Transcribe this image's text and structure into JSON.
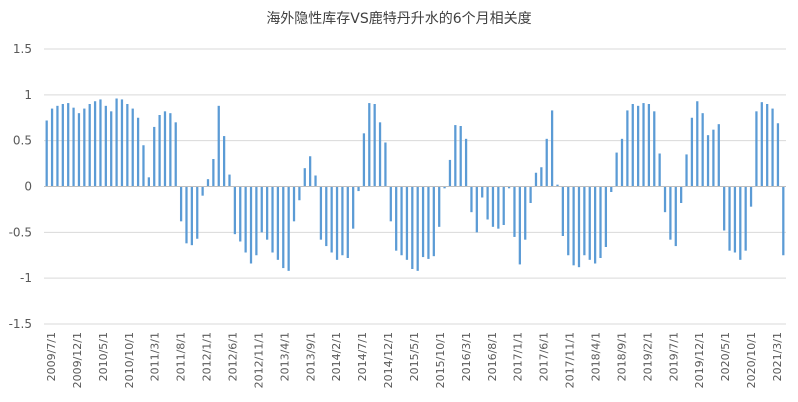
{
  "chart_data": {
    "type": "bar",
    "title": "海外隐性库存VS鹿特丹升水的6个月相关度",
    "xlabel": "",
    "ylabel": "",
    "ylim": [
      -1.5,
      1.5
    ],
    "yticks": [
      "1.5",
      "1",
      "0.5",
      "0",
      "-0.5",
      "-1",
      "-1.5"
    ],
    "x_tick_labels": [
      "2009/7/1",
      "2009/12/1",
      "2010/5/1",
      "2010/10/1",
      "2011/3/1",
      "2011/8/1",
      "2012/1/1",
      "2012/6/1",
      "2012/11/1",
      "2013/4/1",
      "2013/9/1",
      "2014/2/1",
      "2014/7/1",
      "2014/12/1",
      "2015/5/1",
      "2015/10/1",
      "2016/3/1",
      "2016/8/1",
      "2017/1/1",
      "2017/6/1",
      "2017/11/1",
      "2018/4/1",
      "2018/9/1",
      "2019/2/1",
      "2019/7/1",
      "2019/12/1",
      "2020/5/1",
      "2020/10/1",
      "2021/3/1"
    ],
    "grid": true,
    "legend": "none",
    "bar_color": "#5B9BD5",
    "values": [
      0.72,
      0.85,
      0.88,
      0.9,
      0.91,
      0.86,
      0.8,
      0.85,
      0.9,
      0.93,
      0.95,
      0.88,
      0.82,
      0.96,
      0.95,
      0.9,
      0.85,
      0.75,
      0.45,
      0.1,
      0.65,
      0.78,
      0.82,
      0.8,
      0.7,
      -0.38,
      -0.62,
      -0.64,
      -0.57,
      -0.1,
      0.08,
      0.3,
      0.88,
      0.55,
      0.13,
      -0.52,
      -0.6,
      -0.72,
      -0.84,
      -0.75,
      -0.5,
      -0.58,
      -0.72,
      -0.8,
      -0.89,
      -0.92,
      -0.38,
      -0.15,
      0.2,
      0.33,
      0.12,
      -0.58,
      -0.65,
      -0.72,
      -0.8,
      -0.75,
      -0.78,
      -0.46,
      -0.05,
      0.58,
      0.91,
      0.9,
      0.7,
      0.48,
      -0.38,
      -0.7,
      -0.75,
      -0.8,
      -0.9,
      -0.92,
      -0.77,
      -0.79,
      -0.76,
      -0.44,
      -0.02,
      0.29,
      0.67,
      0.66,
      0.52,
      -0.28,
      -0.5,
      -0.12,
      -0.36,
      -0.44,
      -0.46,
      -0.42,
      -0.02,
      -0.55,
      -0.85,
      -0.58,
      -0.18,
      0.15,
      0.21,
      0.52,
      0.83,
      0.02,
      -0.54,
      -0.75,
      -0.86,
      -0.88,
      -0.75,
      -0.8,
      -0.84,
      -0.78,
      -0.66,
      -0.06,
      0.37,
      0.52,
      0.83,
      0.9,
      0.88,
      0.91,
      0.9,
      0.82,
      0.36,
      -0.28,
      -0.58,
      -0.65,
      -0.18,
      0.35,
      0.75,
      0.93,
      0.8,
      0.56,
      0.62,
      0.68,
      -0.48,
      -0.7,
      -0.72,
      -0.8,
      -0.7,
      -0.22,
      0.82,
      0.92,
      0.9,
      0.85,
      0.69,
      -0.75
    ]
  }
}
